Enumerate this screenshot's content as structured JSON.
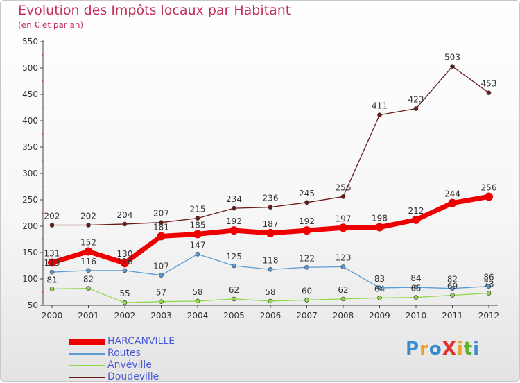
{
  "title": "Evolution des Impôts locaux par Habitant",
  "subtitle": "(en € et par an)",
  "logo": {
    "text": "ProXiti",
    "letters": [
      {
        "char": "P",
        "color": "#3a8ad0"
      },
      {
        "char": "r",
        "color": "#f0a020"
      },
      {
        "char": "o",
        "color": "#3a8ad0"
      },
      {
        "char": "X",
        "color": "#e03030"
      },
      {
        "char": "i",
        "color": "#f0a020"
      },
      {
        "char": "t",
        "color": "#60b030"
      },
      {
        "char": "i",
        "color": "#3a8ad0"
      }
    ]
  },
  "chart_data": {
    "type": "line",
    "title": "Evolution des Impôts locaux par Habitant",
    "subtitle": "(en € et par an)",
    "x": [
      "2000",
      "2001",
      "2002",
      "2003",
      "2004",
      "2005",
      "2006",
      "2007",
      "2008",
      "2009",
      "2010",
      "2011",
      "2012"
    ],
    "ylim": [
      50,
      550
    ],
    "yticks": [
      50,
      100,
      150,
      200,
      250,
      300,
      350,
      400,
      450,
      500,
      550
    ],
    "grid": false,
    "legend_position": "bottom-left",
    "series": [
      {
        "name": "HARCANVILLE",
        "color": "#ee0000",
        "values": [
          131,
          152,
          130,
          181,
          185,
          192,
          187,
          192,
          197,
          198,
          212,
          244,
          256
        ]
      },
      {
        "name": "Routes",
        "color": "#5b9bd5",
        "values": [
          113,
          116,
          116,
          107,
          147,
          125,
          118,
          122,
          123,
          83,
          84,
          82,
          86
        ]
      },
      {
        "name": "Anvéville",
        "color": "#8fd84a",
        "values": [
          81,
          82,
          55,
          57,
          58,
          62,
          58,
          60,
          62,
          64,
          65,
          69,
          73
        ]
      },
      {
        "name": "Doudeville",
        "color": "#6b1a1a",
        "values": [
          202,
          202,
          204,
          207,
          215,
          234,
          236,
          245,
          256,
          411,
          423,
          503,
          453
        ]
      }
    ]
  }
}
